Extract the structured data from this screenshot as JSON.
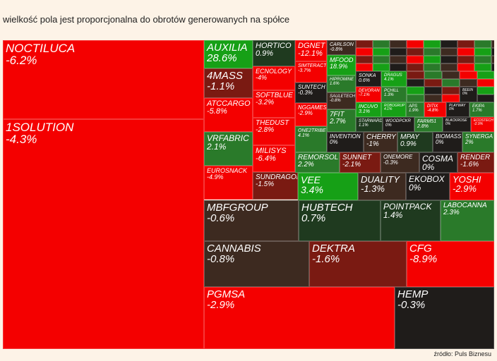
{
  "caption": "wielkość pola jest proporcjonalna do obrotów generowanych na spółce",
  "source": "źródło: Puls Biznesu",
  "colors": {
    "red": "#f40000",
    "darkred": "#7a1a12",
    "brown": "#3d2a20",
    "green": "#2a7a2a",
    "bright_green": "#16a016",
    "darkgreen": "#1f3a1f",
    "dark": "#1f1c1a"
  },
  "chart_data": {
    "type": "treemap",
    "tiles": [
      {
        "name": "NOCTILUCA",
        "change": "-6.2%",
        "value": -6.2
      },
      {
        "name": "1SOLUTION",
        "change": "-4.3%",
        "value": -4.3
      },
      {
        "name": "AUXILIA",
        "change": "28.6%",
        "value": 28.6
      },
      {
        "name": "4MASS",
        "change": "-1.1%",
        "value": -1.1
      },
      {
        "name": "ATCCARGO",
        "change": "-5.8%",
        "value": -5.8
      },
      {
        "name": "VRFABRIC",
        "change": "2.1%",
        "value": 2.1
      },
      {
        "name": "EUROSNACK",
        "change": "-4.9%",
        "value": -4.9
      },
      {
        "name": "HORTICO",
        "change": "0.9%",
        "value": 0.9
      },
      {
        "name": "ECNOLOGY",
        "change": "-4%",
        "value": -4
      },
      {
        "name": "SOFTBLUE",
        "change": "-3.2%",
        "value": -3.2
      },
      {
        "name": "THEDUST",
        "change": "-2.8%",
        "value": -2.8
      },
      {
        "name": "MILISYS",
        "change": "-6.4%",
        "value": -6.4
      },
      {
        "name": "SUNDRAGON",
        "change": "-1.5%",
        "value": -1.5
      },
      {
        "name": "DGNET",
        "change": "-12.1%",
        "value": -12.1
      },
      {
        "name": "SIMTERACT",
        "change": "-3.7%",
        "value": -3.7
      },
      {
        "name": "SUNTECH",
        "change": "-0.3%",
        "value": -0.3
      },
      {
        "name": "NGGAMES",
        "change": "-2.9%",
        "value": -2.9
      },
      {
        "name": "ONE2TRIBE",
        "change": "4.1%",
        "value": 4.1
      },
      {
        "name": "CARLSON",
        "change": "-0.8%",
        "value": -0.8
      },
      {
        "name": "MFOOD",
        "change": "18.9%",
        "value": 18.9
      },
      {
        "name": "HIPROMINE",
        "change": "1.6%",
        "value": 1.6
      },
      {
        "name": "SAULETECH",
        "change": "-0.8%",
        "value": -0.8
      },
      {
        "name": "7FIT",
        "change": "2.7%",
        "value": 2.7
      },
      {
        "name": "REMORSOL",
        "change": "2.2%",
        "value": 2.2
      },
      {
        "name": "SUNNET",
        "change": "-2.1%",
        "value": -2.1
      },
      {
        "name": "INVENTION",
        "change": "0%",
        "value": 0
      },
      {
        "name": "CHERRY",
        "change": "-1%",
        "value": -1
      },
      {
        "name": "MPAY",
        "change": "0.9%",
        "value": 0.9
      },
      {
        "name": "BIOMASS",
        "change": "0%",
        "value": 0
      },
      {
        "name": "SYNERGA",
        "change": "2%",
        "value": 2
      },
      {
        "name": "ONEMORE",
        "change": "-0.3%",
        "value": -0.3
      },
      {
        "name": "COSMA",
        "change": "0%",
        "value": 0
      },
      {
        "name": "RENDER",
        "change": "-1.6%",
        "value": -1.6
      },
      {
        "name": "VEE",
        "change": "3.4%",
        "value": 3.4
      },
      {
        "name": "DUALITY",
        "change": "-1.3%",
        "value": -1.3
      },
      {
        "name": "EKOBOX",
        "change": "0%",
        "value": 0
      },
      {
        "name": "YOSHI",
        "change": "-2.9%",
        "value": -2.9
      },
      {
        "name": "SONKA",
        "change": "0.6%",
        "value": 0.6
      },
      {
        "name": "DEVORAN",
        "change": "-7.1%",
        "value": -7.1
      },
      {
        "name": "INCUVO",
        "change": "3.1%",
        "value": 3.1
      },
      {
        "name": "STARWARD",
        "change": "1.1%",
        "value": 1.1
      },
      {
        "name": "WOODPCKR",
        "change": "0%",
        "value": 0
      },
      {
        "name": "FARM51",
        "change": "2.8%",
        "value": 2.8
      },
      {
        "name": "BLACKROSE",
        "change": "0%",
        "value": 0
      },
      {
        "name": "ECOSTECH",
        "change": "-2.9%",
        "value": -2.9
      },
      {
        "name": "APS",
        "change": "1.9%",
        "value": 1.9
      },
      {
        "name": "DITIX",
        "change": "-4.8%",
        "value": -4.8
      },
      {
        "name": "PLAYWAY",
        "change": "0%",
        "value": 0
      },
      {
        "name": "EKIPA",
        "change": "1.7%",
        "value": 1.7
      },
      {
        "name": "BEEIN",
        "change": "0%",
        "value": 0
      },
      {
        "name": "DRAGUS",
        "change": "4.1%",
        "value": 4.1
      },
      {
        "name": "PCHILL",
        "change": "1.3%",
        "value": 1.3
      },
      {
        "name": "ROBOGRUP",
        "change": "4.1%",
        "value": 4.1
      },
      {
        "name": "MBFGROUP",
        "change": "-0.6%",
        "value": -0.6
      },
      {
        "name": "HUBTECH",
        "change": "0.7%",
        "value": 0.7
      },
      {
        "name": "POINTPACK",
        "change": "1.4%",
        "value": 1.4
      },
      {
        "name": "LABOCANNA",
        "change": "2.3%",
        "value": 2.3
      },
      {
        "name": "CANNABIS",
        "change": "-0.8%",
        "value": -0.8
      },
      {
        "name": "DEKTRA",
        "change": "-1.6%",
        "value": -1.6
      },
      {
        "name": "CFG",
        "change": "-8.9%",
        "value": -8.9
      },
      {
        "name": "PGMSA",
        "change": "-2.9%",
        "value": -2.9
      },
      {
        "name": "HEMP",
        "change": "-0.3%",
        "value": -0.3
      }
    ]
  }
}
